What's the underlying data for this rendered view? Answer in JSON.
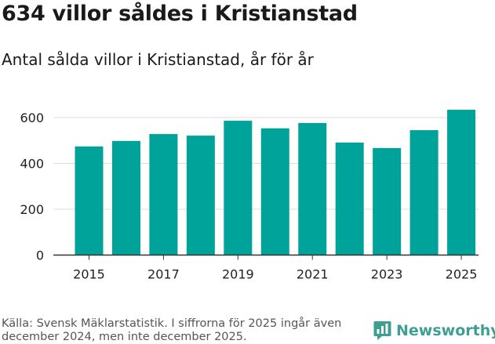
{
  "header": {
    "title": "634 villor såldes i Kristianstad",
    "subtitle": "Antal sålda villor i Kristianstad, år för år"
  },
  "footer": {
    "source": "Källa: Svensk Mäklarstatistik. I siffrorna för 2025 ingår även december 2024, men inte december 2025.",
    "brand": "Newsworthy"
  },
  "colors": {
    "bar": "#00a39a",
    "grid": "#dddddd",
    "axis": "#333333",
    "brand": "#3e9e92"
  },
  "chart_data": {
    "type": "bar",
    "title": "Antal sålda villor i Kristianstad, år för år",
    "xlabel": "",
    "ylabel": "",
    "categories": [
      "2015",
      "2016",
      "2017",
      "2018",
      "2019",
      "2020",
      "2021",
      "2022",
      "2023",
      "2024",
      "2025"
    ],
    "values": [
      474,
      498,
      528,
      521,
      586,
      553,
      576,
      491,
      467,
      545,
      634
    ],
    "ylim": [
      0,
      700
    ],
    "yticks": [
      0,
      200,
      400,
      600
    ],
    "xticks": [
      "2015",
      "2017",
      "2019",
      "2021",
      "2023",
      "2025"
    ],
    "grid": true
  }
}
